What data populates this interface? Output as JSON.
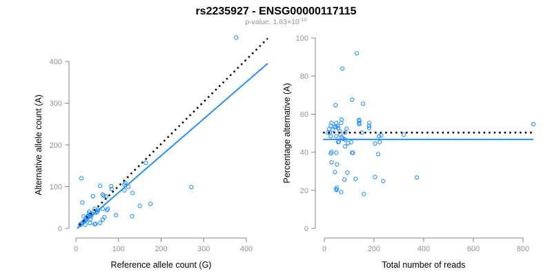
{
  "title": "rs2235927 - ENSG00000117115",
  "subtitle": {
    "prefix": "p-value: 1.63×10",
    "exponent": "-10"
  },
  "colors": {
    "points": "#1E90FF",
    "fit": "#1E90FF",
    "reference": "#000000",
    "axis": "#808080",
    "ticks": "#909090"
  },
  "chart_data": [
    {
      "type": "scatter",
      "xlabel": "Reference allele count (G)",
      "ylabel": "Alternative allele count (A)",
      "xlim": [
        0,
        460
      ],
      "ylim": [
        0,
        460
      ],
      "xticks": [
        0,
        100,
        200,
        300,
        400
      ],
      "yticks": [
        0,
        100,
        200,
        300,
        400
      ],
      "grid": false,
      "points": [
        [
          376,
          457
        ],
        [
          13,
          120
        ],
        [
          15,
          62
        ],
        [
          57,
          102
        ],
        [
          40,
          77
        ],
        [
          83,
          101
        ],
        [
          84,
          94
        ],
        [
          63,
          81
        ],
        [
          65,
          78
        ],
        [
          71,
          77
        ],
        [
          114,
          105
        ],
        [
          116,
          109
        ],
        [
          123,
          100
        ],
        [
          114,
          91
        ],
        [
          133,
          85
        ],
        [
          164,
          157
        ],
        [
          271,
          99
        ],
        [
          150,
          54
        ],
        [
          175,
          59
        ],
        [
          132,
          29
        ],
        [
          94,
          32
        ],
        [
          75,
          47
        ],
        [
          73,
          44
        ],
        [
          63,
          47
        ],
        [
          67,
          27
        ],
        [
          63,
          21
        ],
        [
          57,
          13
        ],
        [
          46,
          11
        ],
        [
          44,
          10
        ],
        [
          33,
          13
        ],
        [
          22,
          9
        ],
        [
          12,
          11
        ],
        [
          18,
          29
        ],
        [
          24,
          26
        ],
        [
          31,
          40
        ],
        [
          32,
          36
        ],
        [
          44,
          47
        ],
        [
          43,
          40
        ],
        [
          48,
          38
        ],
        [
          50,
          40
        ],
        [
          36,
          29
        ],
        [
          27,
          28
        ],
        [
          34,
          22
        ],
        [
          24,
          20
        ],
        [
          19,
          16
        ],
        [
          15,
          13
        ],
        [
          30,
          31
        ],
        [
          33,
          33
        ],
        [
          52,
          44
        ],
        [
          28,
          30
        ],
        [
          35,
          32
        ],
        [
          38,
          35
        ],
        [
          20,
          18
        ],
        [
          10,
          8
        ]
      ],
      "lines": [
        {
          "name": "fit",
          "style": "solid",
          "x": [
            3,
            450
          ],
          "y": [
            0,
            395
          ]
        },
        {
          "name": "reference",
          "style": "dotted",
          "x": [
            8,
            450
          ],
          "y": [
            8,
            455
          ]
        }
      ]
    },
    {
      "type": "scatter",
      "xlabel": "Total number of reads",
      "ylabel": "Percentage alternative (A)",
      "xlim": [
        0,
        840
      ],
      "ylim": [
        0,
        100
      ],
      "xticks": [
        0,
        200,
        400,
        600,
        800
      ],
      "yticks": [
        0,
        20,
        40,
        60,
        80,
        100
      ],
      "grid": false,
      "points": [
        [
          131,
          91.9
        ],
        [
          73,
          83.9
        ],
        [
          112,
          67.6
        ],
        [
          156,
          65.5
        ],
        [
          45,
          64.7
        ],
        [
          842,
          54.7
        ],
        [
          320,
          49.2
        ],
        [
          373,
          26.7
        ],
        [
          70,
          57.1
        ],
        [
          29,
          55.4
        ],
        [
          48,
          55.4
        ],
        [
          68,
          55.4
        ],
        [
          140,
          56.9
        ],
        [
          141,
          56.4
        ],
        [
          140,
          55.4
        ],
        [
          141,
          54.7
        ],
        [
          181,
          55.4
        ],
        [
          180,
          53.9
        ],
        [
          180,
          52.7
        ],
        [
          151,
          50.3
        ],
        [
          90,
          52.4
        ],
        [
          62,
          51
        ],
        [
          84,
          50.3
        ],
        [
          20,
          52.2
        ],
        [
          23,
          50.3
        ],
        [
          15,
          50.3
        ],
        [
          34,
          51.7
        ],
        [
          26,
          53.8
        ],
        [
          43,
          53.4
        ],
        [
          54,
          53.8
        ],
        [
          56,
          52.7
        ],
        [
          48,
          53.2
        ],
        [
          26,
          48.4
        ],
        [
          48,
          48.4
        ],
        [
          65,
          49.2
        ],
        [
          70,
          47.8
        ],
        [
          76,
          47.1
        ],
        [
          84,
          46.7
        ],
        [
          56,
          45.3
        ],
        [
          58,
          45.6
        ],
        [
          95,
          44.7
        ],
        [
          109,
          45.3
        ],
        [
          84,
          43
        ],
        [
          204,
          44.5
        ],
        [
          223,
          45.3
        ],
        [
          220,
          48.4
        ],
        [
          229,
          48.8
        ],
        [
          112,
          39.7
        ],
        [
          115,
          39.7
        ],
        [
          48,
          39.7
        ],
        [
          29,
          40.1
        ],
        [
          26,
          39.4
        ],
        [
          217,
          39
        ],
        [
          29,
          34.7
        ],
        [
          51,
          33.6
        ],
        [
          43,
          29.6
        ],
        [
          93,
          29.3
        ],
        [
          81,
          25.6
        ],
        [
          126,
          26
        ],
        [
          204,
          27
        ],
        [
          237,
          24.8
        ],
        [
          48,
          20.5
        ],
        [
          50,
          21.3
        ],
        [
          49,
          20.2
        ],
        [
          68,
          19.1
        ],
        [
          159,
          18
        ]
      ],
      "lines": [
        {
          "name": "fit",
          "style": "solid",
          "x": [
            -5,
            842
          ],
          "y": [
            46.7,
            46.7
          ]
        },
        {
          "name": "reference",
          "style": "dotted",
          "x": [
            -5,
            842
          ],
          "y": [
            50.3,
            50.3
          ]
        }
      ]
    }
  ]
}
